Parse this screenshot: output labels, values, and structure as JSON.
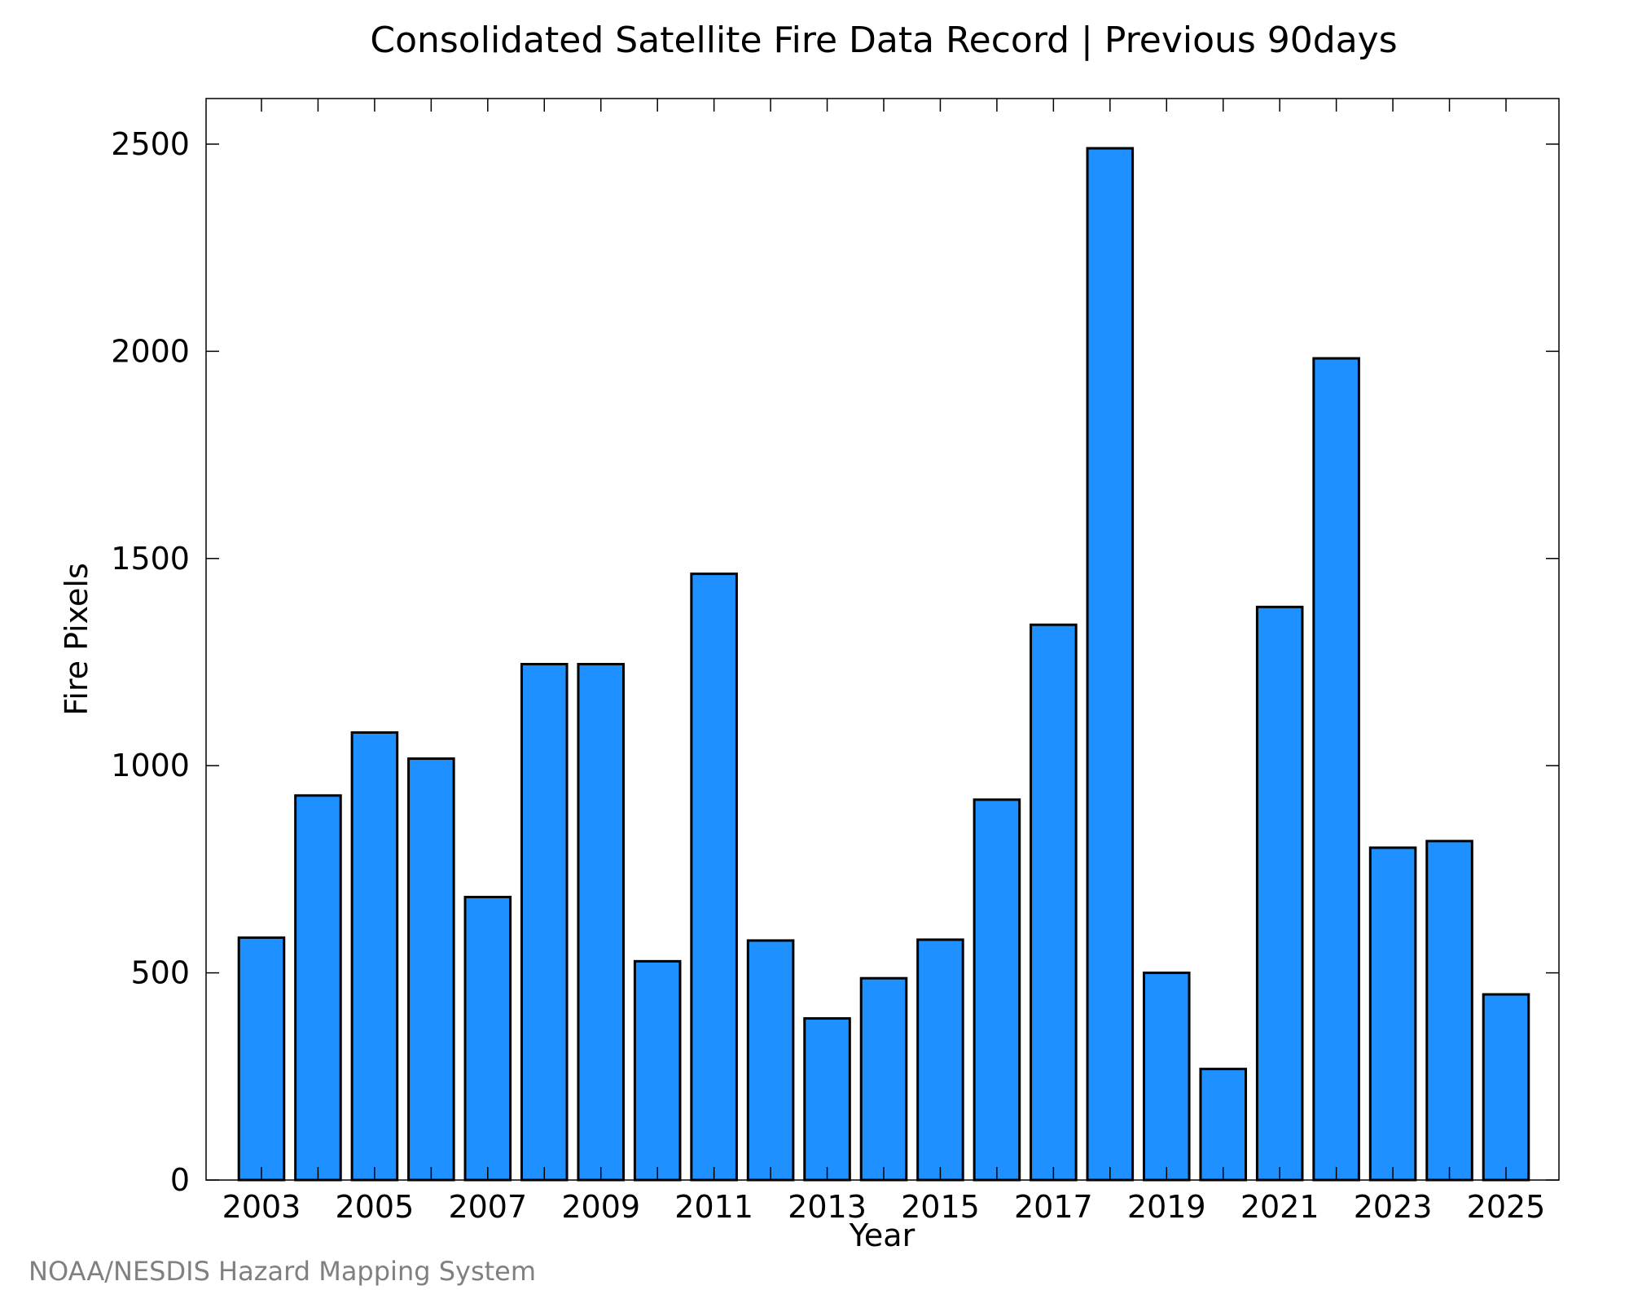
{
  "chart_data": {
    "type": "bar",
    "title": "Consolidated Satellite Fire Data Record | Previous 90days",
    "xlabel": "Year",
    "ylabel": "Fire Pixels",
    "categories": [
      "2003",
      "2004",
      "2005",
      "2006",
      "2007",
      "2008",
      "2009",
      "2010",
      "2011",
      "2012",
      "2013",
      "2014",
      "2015",
      "2016",
      "2017",
      "2018",
      "2019",
      "2020",
      "2021",
      "2022",
      "2023",
      "2024",
      "2025"
    ],
    "values": [
      585,
      928,
      1080,
      1017,
      683,
      1245,
      1245,
      528,
      1463,
      578,
      390,
      487,
      580,
      918,
      1340,
      2490,
      500,
      268,
      1383,
      1983,
      802,
      818,
      448
    ],
    "x_tick_labels": [
      "2003",
      "2005",
      "2007",
      "2009",
      "2011",
      "2013",
      "2015",
      "2017",
      "2019",
      "2021",
      "2023",
      "2025"
    ],
    "y_ticks": [
      0,
      500,
      1000,
      1500,
      2000,
      2500
    ],
    "ylim": [
      0,
      2610
    ],
    "bar_color": "#1e90ff",
    "grid": false,
    "legend": "none"
  },
  "footer": {
    "credit": "NOAA/NESDIS Hazard Mapping System"
  }
}
